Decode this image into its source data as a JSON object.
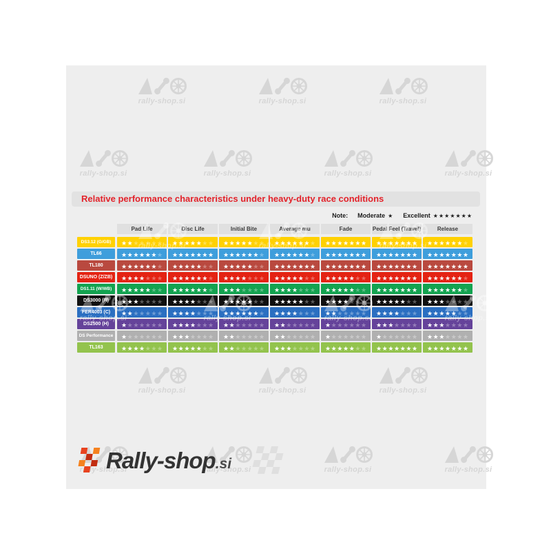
{
  "chart_data": {
    "type": "table",
    "title": "Relative performance characteristics under heavy-duty race conditions",
    "rating_scale": {
      "min": 1,
      "max": 7,
      "min_label": "Moderate",
      "max_label": "Excellent"
    },
    "columns": [
      "Pad Life",
      "Disc Life",
      "Initial Bite",
      "Average mu",
      "Fade",
      "Pedal Feel (Travel)",
      "Release"
    ],
    "rows": [
      {
        "name": "DS3.12 (G/GB)",
        "color": "#FFD103",
        "ratings": [
          2,
          5,
          5,
          6,
          7,
          7,
          6
        ]
      },
      {
        "name": "TL66",
        "color": "#3E9EDC",
        "ratings": [
          6,
          7,
          6,
          6,
          7,
          7,
          7
        ]
      },
      {
        "name": "TL180",
        "color": "#B9493F",
        "ratings": [
          6,
          5,
          5,
          7,
          7,
          7,
          7
        ]
      },
      {
        "name": "DSUNO (Z/ZB)",
        "color": "#E42313",
        "ratings": [
          4,
          6,
          4,
          5,
          5,
          7,
          6
        ]
      },
      {
        "name": "DS1.11 (W/WB)",
        "color": "#13A350",
        "ratings": [
          5,
          6,
          3,
          4,
          5,
          7,
          6
        ]
      },
      {
        "name": "DS3000 (R)",
        "color": "#101010",
        "ratings": [
          3,
          4,
          5,
          5,
          4,
          5,
          3
        ]
      },
      {
        "name": "FER4003 (C)",
        "color": "#2B6FC1",
        "ratings": [
          2,
          4,
          6,
          4,
          2,
          4,
          5
        ]
      },
      {
        "name": "DS2500 (H)",
        "color": "#65439A",
        "ratings": [
          1,
          4,
          2,
          2,
          1,
          3,
          3
        ]
      },
      {
        "name": "DS Performance",
        "color": "#B0B0B0",
        "ratings": [
          1,
          3,
          2,
          2,
          1,
          1,
          3
        ]
      },
      {
        "name": "TL163",
        "color": "#93C34D",
        "ratings": [
          4,
          5,
          2,
          3,
          5,
          7,
          7
        ]
      }
    ]
  },
  "note": {
    "label": "Note:",
    "moderate_label": "Moderate",
    "moderate_stars": 1,
    "excellent_label": "Excellent",
    "excellent_stars": 7
  },
  "star_char": "★",
  "watermark": {
    "text": "rally-shop.si"
  },
  "brand": {
    "name": "Rally-shop",
    "tld": ".si"
  }
}
